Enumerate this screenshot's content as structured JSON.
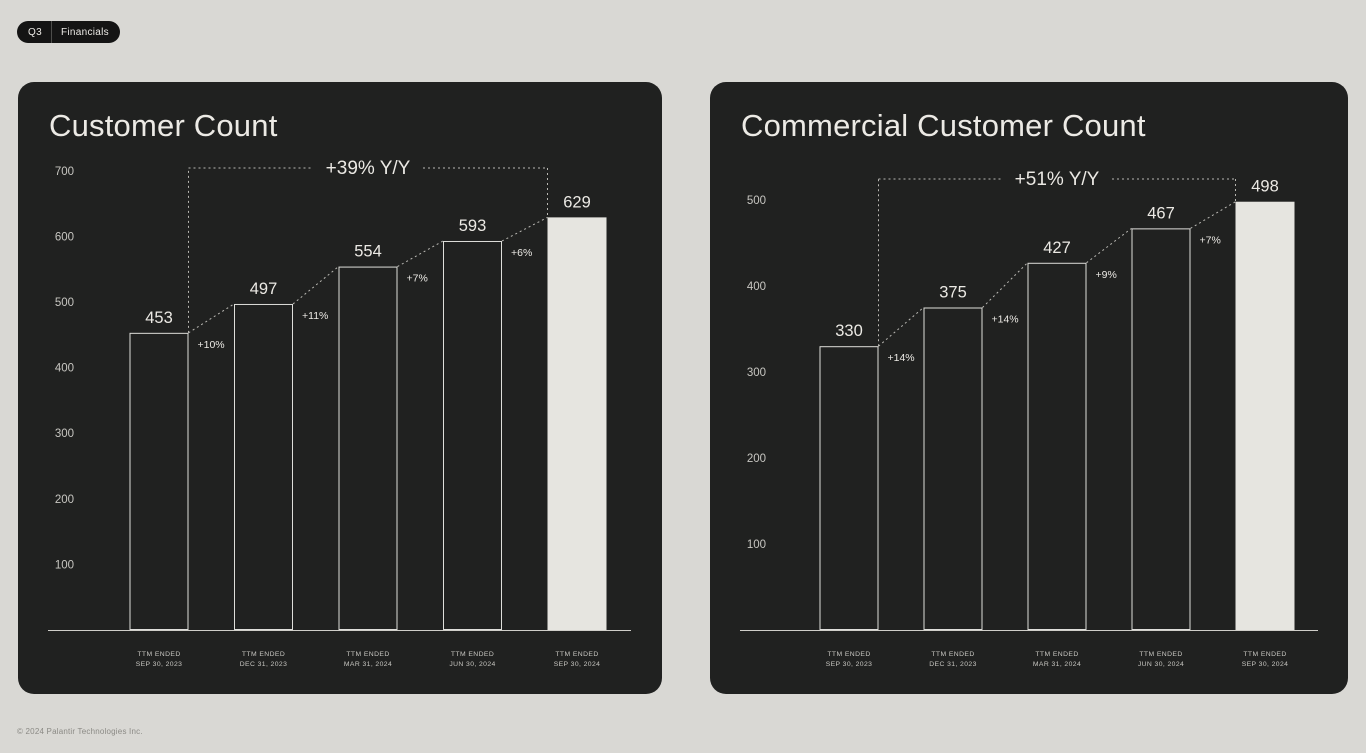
{
  "header": {
    "badge": {
      "quarter_label": "Q3",
      "section_label": "Financials"
    }
  },
  "footer": {
    "copyright": "© 2024 Palantir Technologies Inc."
  },
  "colors": {
    "page_bg": "#d9d8d4",
    "card_bg": "#202120",
    "text_light": "#ebe9e4",
    "muted_text": "#c7c6c1",
    "axis_line": "#cfcec9",
    "dotted_line": "#b9b8b3",
    "bar_outline": "#dededa",
    "bar_fill_final": "#e6e5e0"
  },
  "chart_data": [
    {
      "type": "bar",
      "title": "Customer Count",
      "values": [
        453,
        497,
        554,
        593,
        629
      ],
      "categories": [
        [
          "TTM ENDED",
          "SEP 30, 2023"
        ],
        [
          "TTM ENDED",
          "DEC 31, 2023"
        ],
        [
          "TTM ENDED",
          "MAR 31, 2024"
        ],
        [
          "TTM ENDED",
          "JUN 30, 2024"
        ],
        [
          "TTM ENDED",
          "SEP 30, 2024"
        ]
      ],
      "growth_labels": [
        "+10%",
        "+11%",
        "+7%",
        "+6%"
      ],
      "yoy_annotation": "+39% Y/Y",
      "y_ticks": [
        100,
        200,
        300,
        400,
        500,
        600,
        700
      ],
      "ylim": [
        0,
        750
      ],
      "grid": false,
      "legend": false,
      "final_bar_filled": true
    },
    {
      "type": "bar",
      "title": "Commercial Customer Count",
      "values": [
        330,
        375,
        427,
        467,
        498
      ],
      "categories": [
        [
          "TTM ENDED",
          "SEP 30, 2023"
        ],
        [
          "TTM ENDED",
          "DEC 31, 2023"
        ],
        [
          "TTM ENDED",
          "MAR 31, 2024"
        ],
        [
          "TTM ENDED",
          "JUN 30, 2024"
        ],
        [
          "TTM ENDED",
          "SEP 30, 2024"
        ]
      ],
      "growth_labels": [
        "+14%",
        "+14%",
        "+9%",
        "+7%"
      ],
      "yoy_annotation": "+51% Y/Y",
      "y_ticks": [
        100,
        200,
        300,
        400,
        500
      ],
      "ylim": [
        0,
        525
      ],
      "grid": false,
      "legend": false,
      "final_bar_filled": true
    }
  ]
}
